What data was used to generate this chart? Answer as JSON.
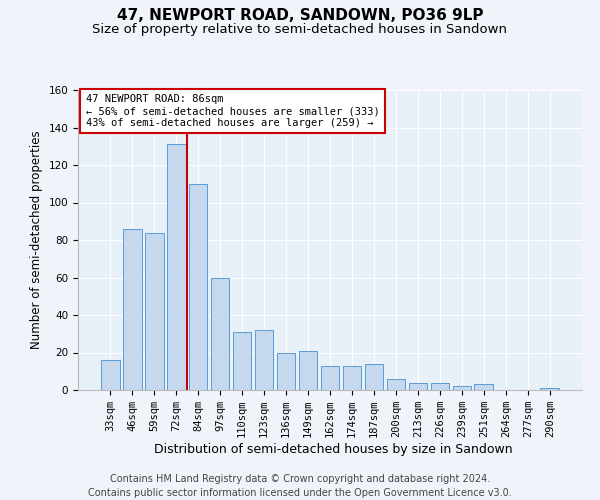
{
  "title": "47, NEWPORT ROAD, SANDOWN, PO36 9LP",
  "subtitle": "Size of property relative to semi-detached houses in Sandown",
  "xlabel": "Distribution of semi-detached houses by size in Sandown",
  "ylabel": "Number of semi-detached properties",
  "categories": [
    "33sqm",
    "46sqm",
    "59sqm",
    "72sqm",
    "84sqm",
    "97sqm",
    "110sqm",
    "123sqm",
    "136sqm",
    "149sqm",
    "162sqm",
    "174sqm",
    "187sqm",
    "200sqm",
    "213sqm",
    "226sqm",
    "239sqm",
    "251sqm",
    "264sqm",
    "277sqm",
    "290sqm"
  ],
  "values": [
    16,
    86,
    84,
    131,
    110,
    60,
    31,
    32,
    20,
    21,
    13,
    13,
    14,
    6,
    4,
    4,
    2,
    3,
    0,
    0,
    1
  ],
  "bar_color": "#c5d8ed",
  "bar_edge_color": "#5b9bd5",
  "annotation_title": "47 NEWPORT ROAD: 86sqm",
  "annotation_line1": "← 56% of semi-detached houses are smaller (333)",
  "annotation_line2": "43% of semi-detached houses are larger (259) →",
  "annotation_box_color": "#ffffff",
  "annotation_box_edge": "#cc0000",
  "marker_line_color": "#cc0000",
  "ylim": [
    0,
    160
  ],
  "yticks": [
    0,
    20,
    40,
    60,
    80,
    100,
    120,
    140,
    160
  ],
  "footer1": "Contains HM Land Registry data © Crown copyright and database right 2024.",
  "footer2": "Contains public sector information licensed under the Open Government Licence v3.0.",
  "bg_color": "#f0f4fa",
  "plot_bg_color": "#e8f0f8",
  "title_fontsize": 11,
  "subtitle_fontsize": 9.5,
  "axis_label_fontsize": 8.5,
  "tick_fontsize": 7.5,
  "footer_fontsize": 7
}
